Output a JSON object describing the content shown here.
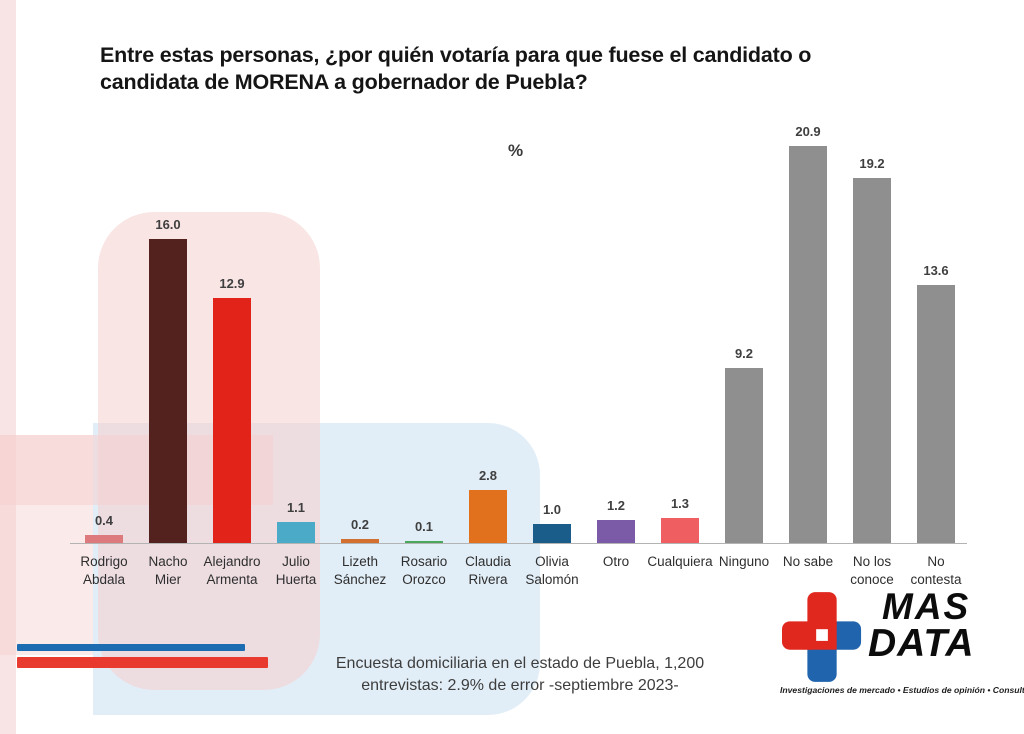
{
  "title": "Entre estas personas, ¿por quién votaría para que fuese el candidato o\ncandidata de MORENA a gobernador de Puebla?",
  "percent_label": "%",
  "chart_data": {
    "type": "bar",
    "title": "Entre estas personas, ¿por quién votaría para que fuese el candidato o candidata de MORENA a gobernador de Puebla?",
    "unit": "%",
    "ylabel": "%",
    "xlabel": "",
    "ylim": [
      0,
      22
    ],
    "grid": false,
    "legend": false,
    "categories": [
      "Rodrigo Abdala",
      "Nacho Mier",
      "Alejandro Armenta",
      "Julio Huerta",
      "Lizeth Sánchez",
      "Rosario Orozco",
      "Claudia Rivera",
      "Olivia Salomón",
      "Otro",
      "Cualquiera",
      "Ninguno",
      "No sabe",
      "No los conoce",
      "No contesta"
    ],
    "category_lines": [
      "Rodrigo\nAbdala",
      "Nacho\nMier",
      "Alejandro\nArmenta",
      "Julio\nHuerta",
      "Lizeth\nSánchez",
      "Rosario\nOrozco",
      "Claudia\nRivera",
      "Olivia\nSalomón",
      "Otro",
      "Cualquiera",
      "Ninguno",
      "No sabe",
      "No los\nconoce",
      "No\ncontesta"
    ],
    "values": [
      0.4,
      16.0,
      12.9,
      1.1,
      0.2,
      0.1,
      2.8,
      1.0,
      1.2,
      1.3,
      9.2,
      20.9,
      19.2,
      13.6
    ],
    "value_labels": [
      "0.4",
      "16.0",
      "12.9",
      "1.1",
      "0.2",
      "0.1",
      "2.8",
      "1.0",
      "1.2",
      "1.3",
      "9.2",
      "20.9",
      "19.2",
      "13.6"
    ],
    "colors": [
      "#dd7a7e",
      "#53221f",
      "#e2231a",
      "#4aaac8",
      "#d2702f",
      "#4aa85c",
      "#e2711d",
      "#1b5d8a",
      "#7b5ba8",
      "#ef5f62",
      "#8f8f8f",
      "#8f8f8f",
      "#8f8f8f",
      "#8f8f8f"
    ]
  },
  "footer": {
    "source_note": "Encuesta domiciliaria en el estado de Puebla, 1,200\nentrevistas: 2.9% de error -septiembre 2023-"
  },
  "decor": {
    "underline_blue": "#1b6cb0",
    "underline_red": "#e83a2f"
  },
  "logo": {
    "name_line1": "MAS",
    "name_line2": "DATA",
    "tagline": "Investigaciones de mercado • Estudios de opinión • Consultoría",
    "colors": {
      "red": "#e0281f",
      "blue": "#1f64ad",
      "text": "#0c0c0c"
    }
  }
}
